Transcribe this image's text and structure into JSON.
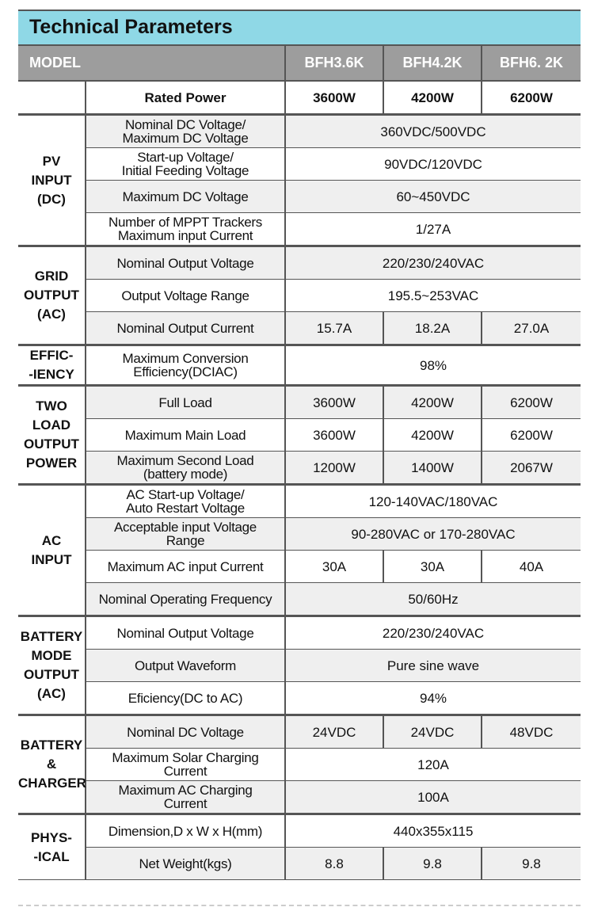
{
  "title": "Technical Parameters",
  "model_label": "MODEL",
  "models": [
    "BFH3.6K",
    "BFH4.2K",
    "BFH6. 2K"
  ],
  "rated": {
    "label": "Rated Power",
    "values": [
      "3600W",
      "4200W",
      "6200W"
    ]
  },
  "groups": [
    {
      "name": "PV\nINPUT\n(DC)",
      "rows": [
        {
          "label": "Nominal DC Voltage/\nMaximum DC Voltage",
          "values": [
            "360VDC/500VDC"
          ]
        },
        {
          "label": "Start-up Voltage/\nInitial Feeding Voltage",
          "values": [
            "90VDC/120VDC"
          ]
        },
        {
          "label": "Maximum DC Voltage",
          "values": [
            "60~450VDC"
          ]
        },
        {
          "label": "Number of MPPT Trackers\nMaximum input Current",
          "values": [
            "1/27A"
          ]
        }
      ]
    },
    {
      "name": "GRID\nOUTPUT\n(AC)",
      "rows": [
        {
          "label": "Nominal Output Voltage",
          "values": [
            "220/230/240VAC"
          ]
        },
        {
          "label": "Output Voltage Range",
          "values": [
            "195.5~253VAC"
          ]
        },
        {
          "label": "Nominal Output Current",
          "values": [
            "15.7A",
            "18.2A",
            "27.0A"
          ]
        }
      ]
    },
    {
      "name": "EFFIC-\n-IENCY",
      "rows": [
        {
          "label": "Maximum Conversion\nEfficiency(DCIAC)",
          "values": [
            "98%"
          ]
        }
      ]
    },
    {
      "name": "TWO\nLOAD\nOUTPUT\nPOWER",
      "rows": [
        {
          "label": "Full Load",
          "values": [
            "3600W",
            "4200W",
            "6200W"
          ]
        },
        {
          "label": "Maximum Main Load",
          "values": [
            "3600W",
            "4200W",
            "6200W"
          ]
        },
        {
          "label": "Maximum Second Load\n(battery mode)",
          "values": [
            "1200W",
            "1400W",
            "2067W"
          ]
        }
      ]
    },
    {
      "name": "AC\nINPUT",
      "rows": [
        {
          "label": "AC Start-up Voltage/\nAuto Restart Voltage",
          "values": [
            "120-140VAC/180VAC"
          ]
        },
        {
          "label": "Acceptable input Voltage\nRange",
          "values": [
            "90-280VAC or 170-280VAC"
          ]
        },
        {
          "label": "Maximum AC input Current",
          "values": [
            "30A",
            "30A",
            "40A"
          ]
        },
        {
          "label": "Nominal Operating Frequency",
          "values": [
            "50/60Hz"
          ]
        }
      ]
    },
    {
      "name": "BATTERY\nMODE\nOUTPUT\n(AC)",
      "rows": [
        {
          "label": "Nominal Output Voltage",
          "values": [
            "220/230/240VAC"
          ]
        },
        {
          "label": "Output Waveform",
          "values": [
            "Pure sine wave"
          ]
        },
        {
          "label": "Eficiency(DC to AC)",
          "values": [
            "94%"
          ]
        }
      ]
    },
    {
      "name": "BATTERY\n&\nCHARGER",
      "rows": [
        {
          "label": "Nominal DC Voltage",
          "values": [
            "24VDC",
            "24VDC",
            "48VDC"
          ]
        },
        {
          "label": "Maximum Solar Charging\nCurrent",
          "values": [
            "120A"
          ]
        },
        {
          "label": "Maximum AC Charging\nCurrent",
          "values": [
            "100A"
          ]
        }
      ]
    },
    {
      "name": "PHYS-\n-ICAL",
      "rows": [
        {
          "label": "Dimension,D x W x H(mm)",
          "values": [
            "440x355x115"
          ]
        },
        {
          "label": "Net Weight(kgs)",
          "values": [
            "8.8",
            "9.8",
            "9.8"
          ]
        }
      ]
    }
  ]
}
